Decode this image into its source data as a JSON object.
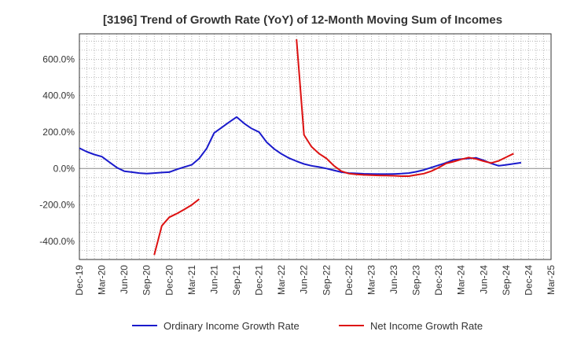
{
  "chart_data": {
    "type": "line",
    "title": "[3196]  Trend of Growth Rate (YoY) of 12-Month Moving Sum of Incomes",
    "xlabel": "",
    "ylabel": "",
    "x_tick_labels": [
      "Dec-19",
      "Mar-20",
      "Jun-20",
      "Sep-20",
      "Dec-20",
      "Mar-21",
      "Jun-21",
      "Sep-21",
      "Dec-21",
      "Mar-22",
      "Jun-22",
      "Sep-22",
      "Dec-22",
      "Mar-23",
      "Jun-23",
      "Sep-23",
      "Dec-23",
      "Mar-24",
      "Jun-24",
      "Sep-24",
      "Dec-24",
      "Mar-25"
    ],
    "y_ticks": [
      -400,
      -200,
      0,
      200,
      400,
      600
    ],
    "y_tick_labels": [
      "-400.0%",
      "-200.0%",
      "0.0%",
      "200.0%",
      "400.0%",
      "600.0%"
    ],
    "ylim": [
      -500,
      740
    ],
    "x_range_months": [
      0,
      63
    ],
    "grid": true,
    "legend_position": "bottom",
    "colors": {
      "ordinary": "#1a1acc",
      "net": "#dd1111",
      "grid": "#999999",
      "zero": "#888888"
    },
    "series": [
      {
        "name": "Ordinary Income Growth Rate",
        "color": "#1a1acc",
        "points": [
          [
            0,
            112
          ],
          [
            1,
            92
          ],
          [
            2,
            77
          ],
          [
            3,
            65
          ],
          [
            4,
            35
          ],
          [
            5,
            5
          ],
          [
            6,
            -15
          ],
          [
            7,
            -20
          ],
          [
            8,
            -25
          ],
          [
            9,
            -28
          ],
          [
            10,
            -25
          ],
          [
            11,
            -22
          ],
          [
            12,
            -20
          ],
          [
            13,
            -5
          ],
          [
            14,
            8
          ],
          [
            15,
            20
          ],
          [
            16,
            55
          ],
          [
            17,
            110
          ],
          [
            18,
            195
          ],
          [
            19,
            225
          ],
          [
            20,
            255
          ],
          [
            21,
            283
          ],
          [
            22,
            248
          ],
          [
            23,
            220
          ],
          [
            24,
            200
          ],
          [
            25,
            145
          ],
          [
            26,
            108
          ],
          [
            27,
            80
          ],
          [
            28,
            57
          ],
          [
            29,
            40
          ],
          [
            30,
            25
          ],
          [
            31,
            15
          ],
          [
            32,
            8
          ],
          [
            33,
            0
          ],
          [
            34,
            -10
          ],
          [
            35,
            -20
          ],
          [
            36,
            -25
          ],
          [
            37,
            -27
          ],
          [
            38,
            -29
          ],
          [
            39,
            -30
          ],
          [
            40,
            -31
          ],
          [
            41,
            -31
          ],
          [
            42,
            -30
          ],
          [
            43,
            -28
          ],
          [
            44,
            -25
          ],
          [
            45,
            -18
          ],
          [
            46,
            -8
          ],
          [
            47,
            5
          ],
          [
            48,
            18
          ],
          [
            49,
            32
          ],
          [
            50,
            48
          ],
          [
            51,
            52
          ],
          [
            52,
            55
          ],
          [
            53,
            58
          ],
          [
            54,
            45
          ],
          [
            55,
            28
          ],
          [
            56,
            15
          ],
          [
            57,
            20
          ],
          [
            58,
            26
          ],
          [
            59,
            32
          ]
        ]
      },
      {
        "name": "Net Income Growth Rate",
        "color": "#dd1111",
        "segments": [
          [
            [
              10,
              -475
            ],
            [
              11,
              -315
            ],
            [
              12,
              -268
            ],
            [
              13,
              -248
            ],
            [
              14,
              -225
            ],
            [
              15,
              -200
            ],
            [
              16,
              -168
            ]
          ],
          [
            [
              29,
              710
            ],
            [
              30,
              185
            ],
            [
              31,
              120
            ],
            [
              32,
              82
            ],
            [
              33,
              55
            ],
            [
              34,
              15
            ],
            [
              35,
              -15
            ],
            [
              36,
              -28
            ],
            [
              37,
              -32
            ],
            [
              38,
              -35
            ],
            [
              39,
              -37
            ],
            [
              40,
              -38
            ],
            [
              41,
              -39
            ],
            [
              42,
              -40
            ],
            [
              43,
              -42
            ],
            [
              44,
              -42
            ],
            [
              45,
              -35
            ],
            [
              46,
              -28
            ],
            [
              47,
              -15
            ],
            [
              48,
              5
            ],
            [
              49,
              28
            ],
            [
              50,
              38
            ],
            [
              51,
              50
            ],
            [
              52,
              60
            ],
            [
              53,
              52
            ],
            [
              54,
              40
            ],
            [
              55,
              30
            ],
            [
              56,
              42
            ],
            [
              57,
              62
            ],
            [
              58,
              82
            ]
          ]
        ]
      }
    ]
  }
}
